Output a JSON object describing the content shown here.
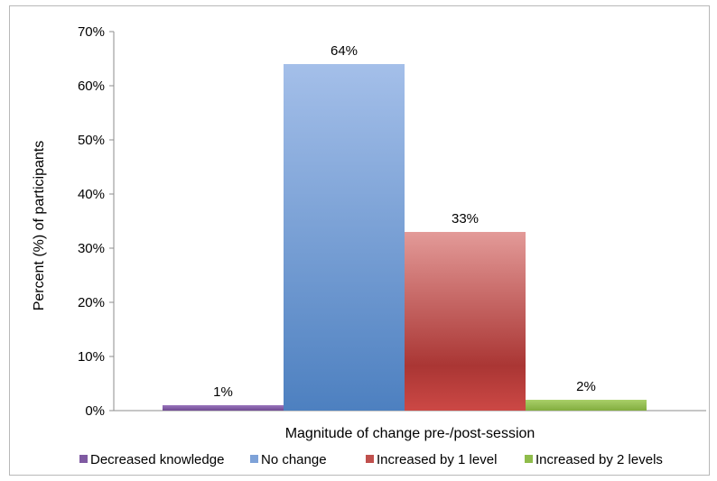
{
  "chart_data": {
    "type": "bar",
    "categories": [
      "Decreased knowledge",
      "No change",
      "Increased by 1 level",
      "Increased by 2 levels"
    ],
    "values": [
      1,
      64,
      33,
      2
    ],
    "data_labels": [
      "1%",
      "64%",
      "33%",
      "2%"
    ],
    "xlabel": "Magnitude of change pre-/post-session",
    "ylabel": "Percent (%) of participants",
    "ylim": [
      0,
      70
    ],
    "yticks": [
      "0%",
      "10%",
      "20%",
      "30%",
      "40%",
      "50%",
      "60%",
      "70%"
    ],
    "grid": false,
    "legend_position": "bottom",
    "colors": {
      "Decreased knowledge": "#7f5aa2",
      "No change": "#7ea2d8",
      "Increased by 1 level": "#c0504d",
      "Increased by 2 levels": "#8fbc4b"
    }
  }
}
